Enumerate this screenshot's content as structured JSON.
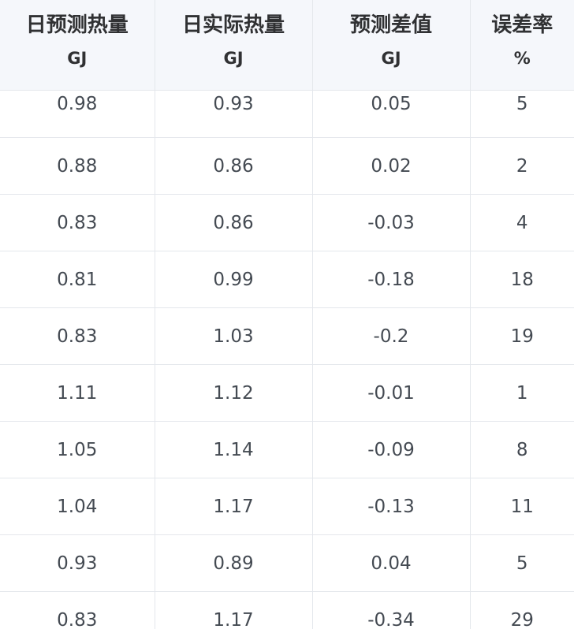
{
  "table": {
    "columns": [
      {
        "title": "日预测热量",
        "unit": "GJ"
      },
      {
        "title": "日实际热量",
        "unit": "GJ"
      },
      {
        "title": "预测差值",
        "unit": "GJ"
      },
      {
        "title": "误差率",
        "unit": "%"
      }
    ],
    "rows": [
      [
        "0.98",
        "0.93",
        "0.05",
        "5"
      ],
      [
        "0.88",
        "0.86",
        "0.02",
        "2"
      ],
      [
        "0.83",
        "0.86",
        "-0.03",
        "4"
      ],
      [
        "0.81",
        "0.99",
        "-0.18",
        "18"
      ],
      [
        "0.83",
        "1.03",
        "-0.2",
        "19"
      ],
      [
        "1.11",
        "1.12",
        "-0.01",
        "1"
      ],
      [
        "1.05",
        "1.14",
        "-0.09",
        "8"
      ],
      [
        "1.04",
        "1.17",
        "-0.13",
        "11"
      ],
      [
        "0.93",
        "0.89",
        "0.04",
        "5"
      ],
      [
        "0.83",
        "1.17",
        "-0.34",
        "29"
      ]
    ]
  }
}
